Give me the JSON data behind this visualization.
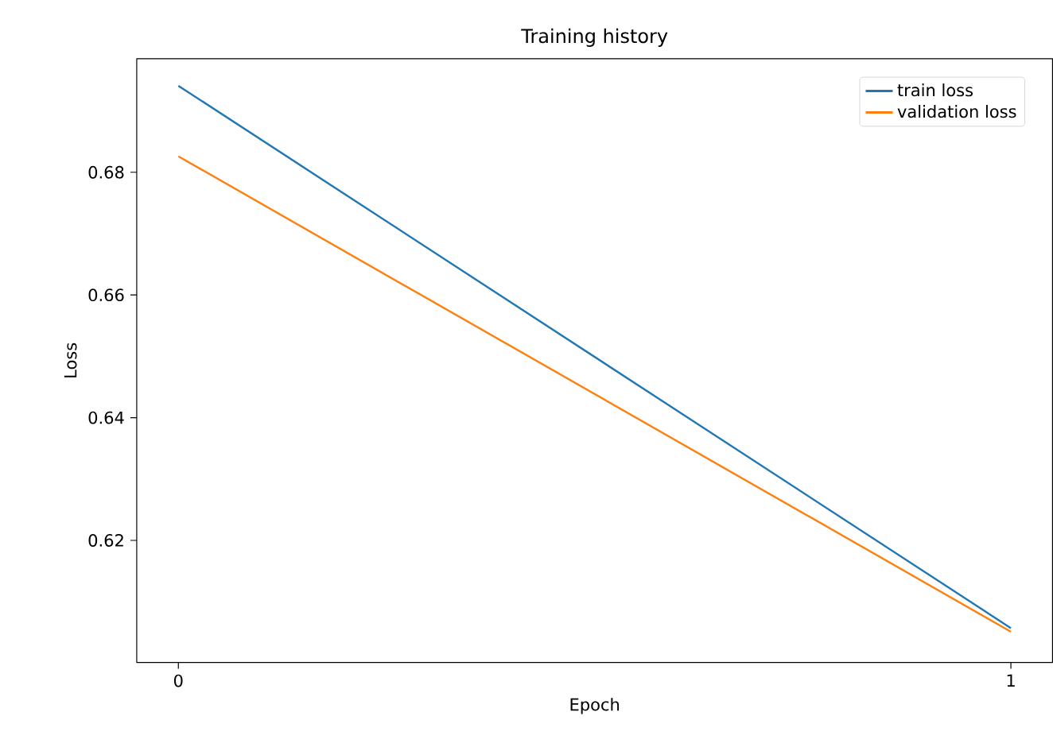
{
  "chart_data": {
    "type": "line",
    "title": "Training history",
    "xlabel": "Epoch",
    "ylabel": "Loss",
    "x": [
      0,
      1
    ],
    "series": [
      {
        "name": "train loss",
        "color": "#1f77b4",
        "values": [
          0.6941,
          0.6057
        ]
      },
      {
        "name": "validation loss",
        "color": "#ff7f0e",
        "values": [
          0.6826,
          0.6051
        ]
      }
    ],
    "xlim": [
      -0.05,
      1.05
    ],
    "ylim": [
      0.6001,
      0.6985
    ],
    "xticks": [
      0,
      1
    ],
    "yticks": [
      0.62,
      0.64,
      0.66,
      0.68
    ],
    "legend": "top right",
    "grid": false,
    "marker": "none",
    "line_style": "solid"
  }
}
